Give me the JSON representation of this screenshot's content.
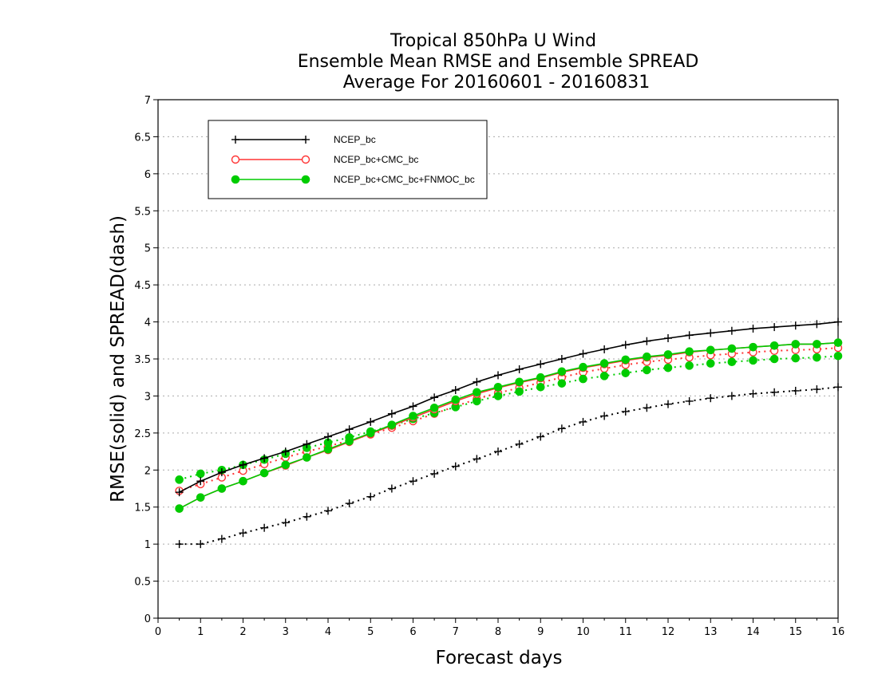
{
  "chart_data": {
    "type": "line",
    "title": [
      "Tropical 850hPa U Wind",
      "Ensemble Mean RMSE and Ensemble SPREAD",
      "Average For 20160601 - 20160831"
    ],
    "xlabel": "Forecast days",
    "ylabel": "RMSE(solid) and SPREAD(dash)",
    "xlim": [
      0,
      16
    ],
    "ylim": [
      0,
      7
    ],
    "xticks": [
      "0",
      "1",
      "2",
      "3",
      "4",
      "5",
      "6",
      "7",
      "8",
      "9",
      "10",
      "11",
      "12",
      "13",
      "14",
      "15",
      "16"
    ],
    "yticks": [
      "0",
      "0.5",
      "1",
      "1.5",
      "2",
      "2.5",
      "3",
      "3.5",
      "4",
      "4.5",
      "5",
      "5.5",
      "6",
      "6.5",
      "7"
    ],
    "grid": true,
    "legend_position": "top-left",
    "x": [
      0.5,
      1,
      1.5,
      2,
      2.5,
      3,
      3.5,
      4,
      4.5,
      5,
      5.5,
      6,
      6.5,
      7,
      7.5,
      8,
      8.5,
      9,
      9.5,
      10,
      10.5,
      11,
      11.5,
      12,
      12.5,
      13,
      13.5,
      14,
      14.5,
      15,
      15.5,
      16
    ],
    "series": [
      {
        "name": "NCEP_bc",
        "color": "#000000",
        "marker": "plus",
        "rmse": [
          1.7,
          1.85,
          1.97,
          2.07,
          2.16,
          2.25,
          2.35,
          2.45,
          2.55,
          2.65,
          2.76,
          2.86,
          2.98,
          3.08,
          3.19,
          3.28,
          3.36,
          3.43,
          3.5,
          3.57,
          3.63,
          3.69,
          3.74,
          3.78,
          3.82,
          3.85,
          3.88,
          3.91,
          3.93,
          3.95,
          3.97,
          4.0
        ],
        "spread": [
          1.0,
          1.0,
          1.07,
          1.15,
          1.22,
          1.29,
          1.37,
          1.45,
          1.55,
          1.64,
          1.75,
          1.85,
          1.95,
          2.05,
          2.15,
          2.25,
          2.35,
          2.45,
          2.56,
          2.65,
          2.73,
          2.79,
          2.84,
          2.89,
          2.93,
          2.97,
          3.0,
          3.03,
          3.05,
          3.07,
          3.09,
          3.12
        ]
      },
      {
        "name": "NCEP_bc+CMC_bc",
        "color": "#ff3333",
        "marker": "open-circle",
        "rmse": [
          1.48,
          1.63,
          1.75,
          1.85,
          1.96,
          2.06,
          2.17,
          2.27,
          2.38,
          2.49,
          2.6,
          2.71,
          2.82,
          2.93,
          3.03,
          3.11,
          3.18,
          3.24,
          3.32,
          3.38,
          3.43,
          3.48,
          3.52,
          3.55,
          3.59,
          3.62,
          3.64,
          3.66,
          3.68,
          3.7,
          3.7,
          3.72
        ],
        "spread": [
          1.72,
          1.81,
          1.9,
          1.99,
          2.08,
          2.17,
          2.25,
          2.32,
          2.4,
          2.48,
          2.57,
          2.66,
          2.76,
          2.86,
          2.96,
          3.04,
          3.11,
          3.18,
          3.25,
          3.32,
          3.37,
          3.42,
          3.46,
          3.49,
          3.52,
          3.55,
          3.57,
          3.59,
          3.61,
          3.62,
          3.63,
          3.65
        ]
      },
      {
        "name": "NCEP_bc+CMC_bc+FNMOC_bc",
        "color": "#00cc00",
        "marker": "filled-circle",
        "rmse": [
          1.48,
          1.63,
          1.75,
          1.85,
          1.96,
          2.07,
          2.17,
          2.28,
          2.39,
          2.5,
          2.61,
          2.73,
          2.84,
          2.95,
          3.05,
          3.12,
          3.19,
          3.25,
          3.33,
          3.39,
          3.44,
          3.49,
          3.53,
          3.56,
          3.6,
          3.62,
          3.64,
          3.66,
          3.68,
          3.7,
          3.7,
          3.72
        ],
        "spread": [
          1.87,
          1.95,
          2.0,
          2.07,
          2.14,
          2.22,
          2.3,
          2.37,
          2.44,
          2.52,
          2.6,
          2.69,
          2.77,
          2.85,
          2.93,
          3.0,
          3.06,
          3.12,
          3.17,
          3.23,
          3.27,
          3.31,
          3.35,
          3.38,
          3.41,
          3.44,
          3.46,
          3.48,
          3.5,
          3.51,
          3.52,
          3.54
        ]
      }
    ]
  }
}
